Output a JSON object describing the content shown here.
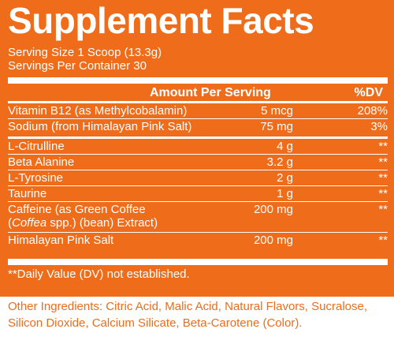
{
  "title": "Supplement Facts",
  "serving_size": "Serving Size 1 Scoop (13.3g)",
  "servings_per_container": "Servings Per Container 30",
  "header": {
    "amount": "Amount Per Serving",
    "dv": "%DV"
  },
  "vitamins": [
    {
      "name": "Vitamin B12 (as Methylcobalamin)",
      "amount": "5 mcg",
      "dv": "208%"
    },
    {
      "name": "Sodium (from Himalayan Pink Salt)",
      "amount": "75 mg",
      "dv": "3%"
    }
  ],
  "ingredients": [
    {
      "name": "L-Citrulline",
      "amount": "4 g",
      "dv": "**"
    },
    {
      "name": "Beta Alanine",
      "amount": "3.2 g",
      "dv": "**"
    },
    {
      "name": "L-Tyrosine",
      "amount": "2 g",
      "dv": "**"
    },
    {
      "name": "Taurine",
      "amount": "1 g",
      "dv": "**"
    }
  ],
  "caffeine": {
    "line1": "Caffeine (as Green Coffee",
    "open_paren": "(",
    "italic": "Coffea",
    "line2_rest": " spp.) (bean) Extract)",
    "amount": "200 mg",
    "dv": "**"
  },
  "salt": {
    "name": "Himalayan Pink Salt",
    "amount": "200 mg",
    "dv": "**"
  },
  "footnote": "**Daily Value (DV) not established.",
  "other_ingredients": "Other Ingredients: Citric Acid, Malic Acid, Natural Flavors, Sucralose, Silicon Dioxide, Calcium Silicate, Beta-Carotene (Color).",
  "colors": {
    "panel": "#ee6c1a",
    "text_on_panel": "#ffffff"
  }
}
